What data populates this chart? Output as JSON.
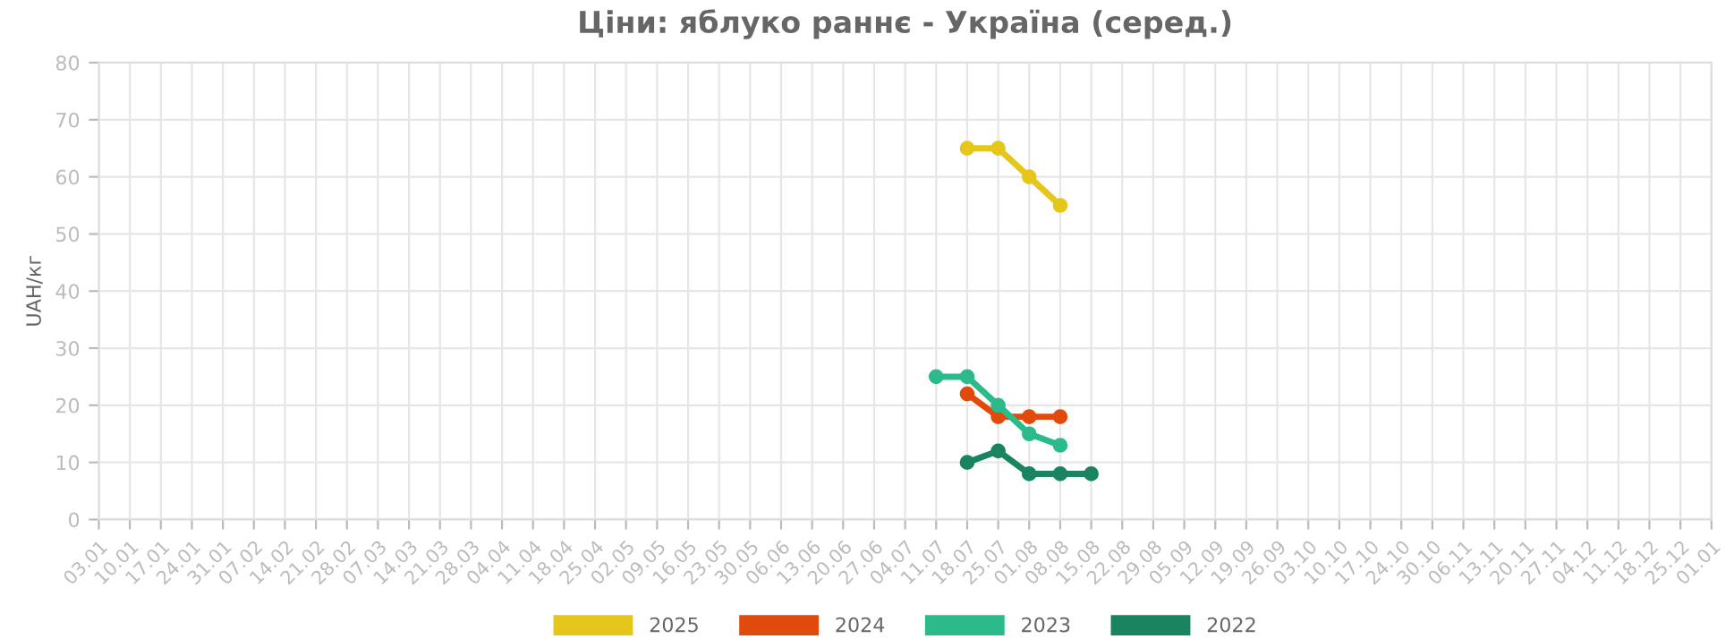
{
  "chart_data": {
    "type": "line",
    "title": "Ціни: яблуко раннє - Україна (серед.)",
    "ylabel": "UAH/кг",
    "categories": [
      "03.01",
      "10.01",
      "17.01",
      "24.01",
      "31.01",
      "07.02",
      "14.02",
      "21.02",
      "28.02",
      "07.03",
      "14.03",
      "21.03",
      "28.03",
      "04.04",
      "11.04",
      "18.04",
      "25.04",
      "02.05",
      "09.05",
      "16.05",
      "23.05",
      "30.05",
      "06.06",
      "13.06",
      "20.06",
      "27.06",
      "04.07",
      "11.07",
      "18.07",
      "25.07",
      "01.08",
      "08.08",
      "15.08",
      "22.08",
      "29.08",
      "05.09",
      "12.09",
      "19.09",
      "26.09",
      "03.10",
      "10.10",
      "17.10",
      "24.10",
      "30.10",
      "06.11",
      "13.11",
      "20.11",
      "27.11",
      "04.12",
      "11.12",
      "18.12",
      "25.12",
      "01.01"
    ],
    "series": [
      {
        "name": "2025",
        "color": "#e5c71b",
        "values": [
          null,
          null,
          null,
          null,
          null,
          null,
          null,
          null,
          null,
          null,
          null,
          null,
          null,
          null,
          null,
          null,
          null,
          null,
          null,
          null,
          null,
          null,
          null,
          null,
          null,
          null,
          null,
          null,
          65,
          65,
          60,
          55,
          null,
          null,
          null,
          null,
          null,
          null,
          null,
          null,
          null,
          null,
          null,
          null,
          null,
          null,
          null,
          null,
          null,
          null,
          null,
          null,
          null
        ]
      },
      {
        "name": "2024",
        "color": "#e04a0c",
        "values": [
          null,
          null,
          null,
          null,
          null,
          null,
          null,
          null,
          null,
          null,
          null,
          null,
          null,
          null,
          null,
          null,
          null,
          null,
          null,
          null,
          null,
          null,
          null,
          null,
          null,
          null,
          null,
          null,
          22,
          18,
          18,
          18,
          null,
          null,
          null,
          null,
          null,
          null,
          null,
          null,
          null,
          null,
          null,
          null,
          null,
          null,
          null,
          null,
          null,
          null,
          null,
          null,
          null
        ]
      },
      {
        "name": "2023",
        "color": "#2bbb8a",
        "values": [
          null,
          null,
          null,
          null,
          null,
          null,
          null,
          null,
          null,
          null,
          null,
          null,
          null,
          null,
          null,
          null,
          null,
          null,
          null,
          null,
          null,
          null,
          null,
          null,
          null,
          null,
          null,
          25,
          25,
          20,
          15,
          13,
          null,
          null,
          null,
          null,
          null,
          null,
          null,
          null,
          null,
          null,
          null,
          null,
          null,
          null,
          null,
          null,
          null,
          null,
          null,
          null,
          null
        ]
      },
      {
        "name": "2022",
        "color": "#1a8360",
        "values": [
          null,
          null,
          null,
          null,
          null,
          null,
          null,
          null,
          null,
          null,
          null,
          null,
          null,
          null,
          null,
          null,
          null,
          null,
          null,
          null,
          null,
          null,
          null,
          null,
          null,
          null,
          null,
          null,
          10,
          12,
          8,
          8,
          8,
          null,
          null,
          null,
          null,
          null,
          null,
          null,
          null,
          null,
          null,
          null,
          null,
          null,
          null,
          null,
          null,
          null,
          null,
          null,
          null
        ]
      }
    ],
    "ylim": [
      0,
      80
    ],
    "yticks": [
      0,
      10,
      20,
      30,
      40,
      50,
      60,
      70,
      80
    ],
    "grid": true,
    "legend": "bottom",
    "marker": "circle",
    "line_style": "solid"
  }
}
